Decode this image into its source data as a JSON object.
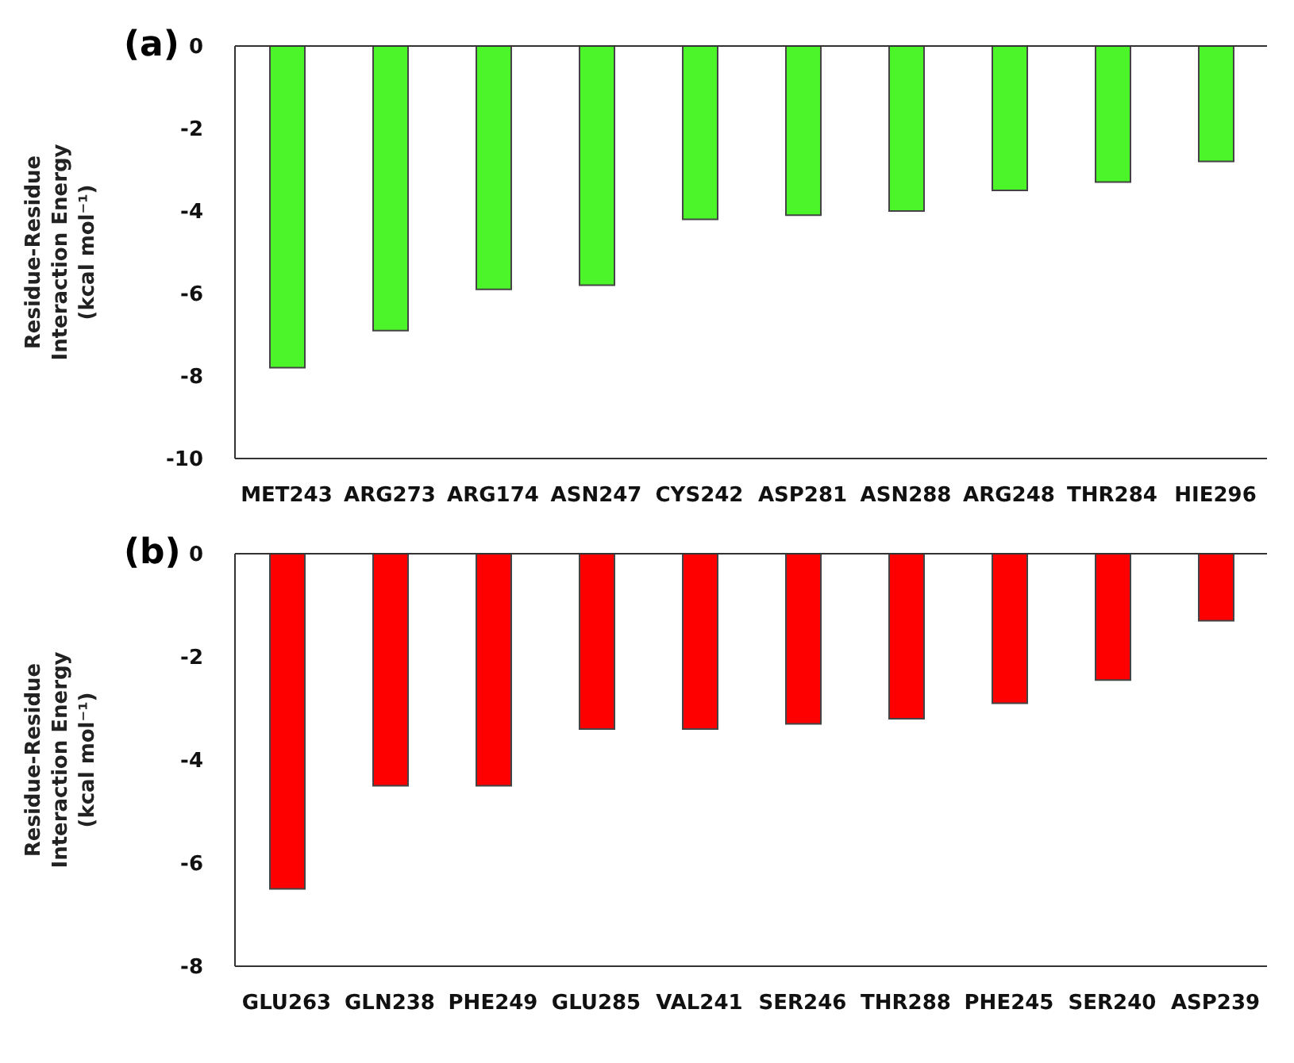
{
  "chart_data": [
    {
      "type": "bar",
      "title": "(a)",
      "ylabel": "Residue-Residue Interaction Energy (kcal mol⁻¹)",
      "categories": [
        "MET243",
        "ARG273",
        "ARG174",
        "ASN247",
        "CYS242",
        "ASP281",
        "ASN288",
        "ARG248",
        "THR284",
        "HIE296"
      ],
      "values": [
        -7.8,
        -6.9,
        -5.9,
        -5.8,
        -4.2,
        -4.1,
        -4.0,
        -3.5,
        -3.3,
        -2.8
      ],
      "color": "#4cf52a",
      "ylim": [
        -10,
        0
      ],
      "yticks": [
        -10,
        -8,
        -6,
        -4,
        -2,
        0
      ],
      "grid": false
    },
    {
      "type": "bar",
      "title": "(b)",
      "ylabel": "Residue-Residue Interaction Energy (kcal mol⁻¹)",
      "categories": [
        "GLU263",
        "GLN238",
        "PHE249",
        "GLU285",
        "VAL241",
        "SER246",
        "THR288",
        "PHE245",
        "SER240",
        "ASP239"
      ],
      "values": [
        -6.5,
        -4.5,
        -4.5,
        -3.4,
        -3.4,
        -3.3,
        -3.2,
        -2.9,
        -2.45,
        -1.3
      ],
      "color": "#ff0000",
      "ylim": [
        -8,
        0
      ],
      "yticks": [
        -8,
        -6,
        -4,
        -2,
        0
      ],
      "grid": false
    }
  ]
}
